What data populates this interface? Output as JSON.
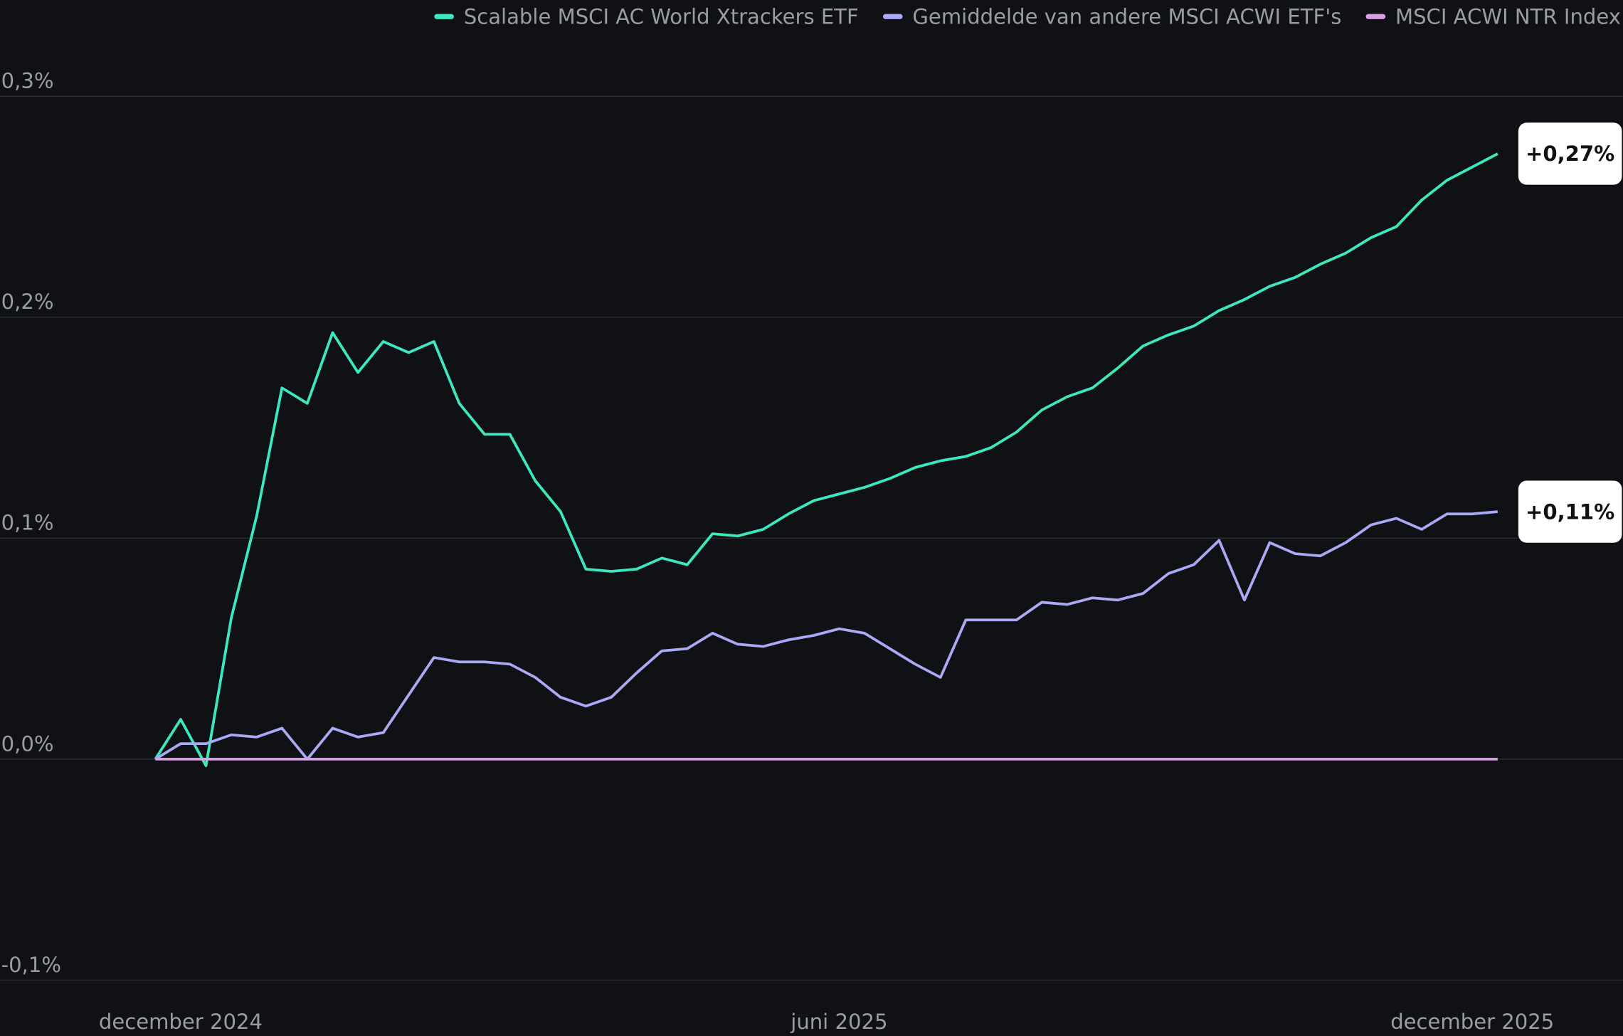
{
  "chart_data": {
    "type": "line",
    "categories": [
      null,
      "december 2024",
      null,
      null,
      null,
      null,
      null,
      null,
      null,
      null,
      null,
      null,
      null,
      null,
      null,
      null,
      null,
      null,
      null,
      null,
      null,
      null,
      null,
      null,
      null,
      null,
      null,
      "juni 2025",
      null,
      null,
      null,
      null,
      null,
      null,
      null,
      null,
      null,
      null,
      null,
      null,
      null,
      null,
      null,
      null,
      null,
      null,
      null,
      null,
      null,
      null,
      null,
      null,
      "december 2025",
      null
    ],
    "series": [
      {
        "name": "Scalable MSCI AC World Xtrackers ETF",
        "color": "#3de8c0",
        "values": [
          0,
          0.018,
          -0.003,
          0.064,
          0.11,
          0.168,
          0.161,
          0.193,
          0.175,
          0.189,
          0.184,
          0.189,
          0.161,
          0.147,
          0.147,
          0.126,
          0.112,
          0.086,
          0.085,
          0.086,
          0.091,
          0.088,
          0.102,
          0.101,
          0.104,
          0.111,
          0.117,
          0.12,
          0.123,
          0.127,
          0.132,
          0.135,
          0.137,
          0.141,
          0.148,
          0.158,
          0.164,
          0.168,
          0.177,
          0.187,
          0.192,
          0.196,
          0.203,
          0.208,
          0.214,
          0.218,
          0.224,
          0.229,
          0.236,
          0.241,
          0.253,
          0.262,
          0.268,
          0.274
        ],
        "value_labels": [
          null,
          null,
          null,
          null,
          null,
          null,
          null,
          null,
          null,
          null,
          null,
          null,
          null,
          null,
          null,
          null,
          null,
          null,
          null,
          null,
          null,
          null,
          null,
          null,
          null,
          null,
          null,
          null,
          null,
          null,
          null,
          null,
          null,
          null,
          null,
          null,
          null,
          null,
          null,
          null,
          null,
          null,
          null,
          null,
          null,
          null,
          null,
          null,
          null,
          null,
          null,
          null,
          null,
          "+0,27%"
        ]
      },
      {
        "name": "Gemiddelde van andere MSCI ACWI ETF's",
        "color": "#a9a9f5",
        "values": [
          0,
          0.007,
          0.007,
          0.011,
          0.01,
          0.014,
          0,
          0.014,
          0.01,
          0.012,
          0.029,
          0.046,
          0.044,
          0.044,
          0.043,
          0.037,
          0.028,
          0.024,
          0.028,
          0.039,
          0.049,
          0.05,
          0.057,
          0.052,
          0.051,
          0.054,
          0.056,
          0.059,
          0.057,
          0.05,
          0.043,
          0.037,
          0.063,
          0.063,
          0.063,
          0.071,
          0.07,
          0.073,
          0.072,
          0.075,
          0.084,
          0.088,
          0.099,
          0.072,
          0.098,
          0.093,
          0.092,
          0.098,
          0.106,
          0.109,
          0.104,
          0.111,
          0.111,
          0.112
        ],
        "value_labels": [
          null,
          null,
          null,
          null,
          null,
          null,
          null,
          null,
          null,
          null,
          null,
          null,
          null,
          null,
          null,
          null,
          null,
          null,
          null,
          null,
          null,
          null,
          null,
          null,
          null,
          null,
          null,
          null,
          null,
          null,
          null,
          null,
          null,
          null,
          null,
          null,
          null,
          null,
          null,
          null,
          null,
          null,
          null,
          null,
          null,
          null,
          null,
          null,
          null,
          null,
          null,
          null,
          null,
          "+0,11%"
        ]
      },
      {
        "name": "MSCI ACWI NTR Index",
        "color": "#d9a0e0",
        "values": [
          0,
          0,
          0,
          0,
          0,
          0,
          0,
          0,
          0,
          0,
          0,
          0,
          0,
          0,
          0,
          0,
          0,
          0,
          0,
          0,
          0,
          0,
          0,
          0,
          0,
          0,
          0,
          0,
          0,
          0,
          0,
          0,
          0,
          0,
          0,
          0,
          0,
          0,
          0,
          0,
          0,
          0,
          0,
          0,
          0,
          0,
          0,
          0,
          0,
          0,
          0,
          0,
          0,
          0
        ]
      }
    ],
    "ylim": [
      -0.1,
      0.3
    ],
    "yticks": [
      {
        "value": 0.3,
        "label": "0,3%"
      },
      {
        "value": 0.2,
        "label": "0,2%"
      },
      {
        "value": 0.1,
        "label": "0,1%"
      },
      {
        "value": 0,
        "label": "0,0%"
      },
      {
        "value": -0.1,
        "label": "-0,1%"
      }
    ],
    "grid": true,
    "legend": "top-right"
  }
}
